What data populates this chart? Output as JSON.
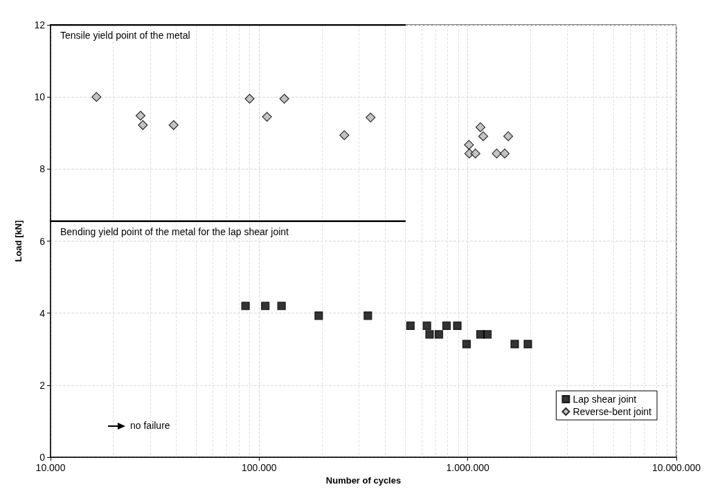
{
  "chart_data": {
    "type": "scatter",
    "xlabel": "Number of cycles",
    "ylabel": "Load [kN]",
    "log": "x",
    "grid": true,
    "legend": "bottom right",
    "xlim": [
      10000,
      10000000
    ],
    "xticks": [
      {
        "value": 10000,
        "label": "10.000"
      },
      {
        "value": 100000,
        "label": "100.000"
      },
      {
        "value": 1000000,
        "label": "1.000.000"
      },
      {
        "value": 10000000,
        "label": "10.000.000"
      }
    ],
    "ylim": [
      0,
      12
    ],
    "yticks": [
      0,
      2,
      4,
      6,
      8,
      10,
      12
    ],
    "series": [
      {
        "name": "Lap shear joint",
        "color": "#000000",
        "marker": "square",
        "x": [
          86000,
          107000,
          128000,
          193000,
          332000,
          531000,
          637000,
          656000,
          727000,
          791000,
          891000,
          987000,
          1150000,
          1242000,
          1679000,
          1941000
        ],
        "values": [
          4.2,
          4.2,
          4.2,
          3.93,
          3.93,
          3.65,
          3.65,
          3.41,
          3.41,
          3.65,
          3.65,
          3.14,
          3.41,
          3.41,
          3.14,
          3.14
        ]
      },
      {
        "name": "Reverse-bent joint",
        "color": "#b4b4b4",
        "marker": "diamond",
        "x": [
          16600,
          27000,
          27700,
          38900,
          90000,
          109000,
          132000,
          256000,
          342000,
          1150000,
          1186000,
          1563000,
          1013000,
          1017000,
          1088000,
          1376000,
          1503000
        ],
        "values": [
          10.0,
          9.48,
          9.22,
          9.22,
          9.95,
          9.45,
          9.95,
          8.94,
          9.43,
          9.16,
          8.91,
          8.91,
          8.67,
          8.43,
          8.43,
          8.43,
          8.43
        ]
      },
      {
        "type": "line",
        "color": "#000000",
        "marker": "none",
        "x": [
          10000,
          500000
        ],
        "values": [
          12,
          12
        ]
      },
      {
        "type": "line",
        "color": "#000000",
        "marker": "none",
        "x": [
          10000,
          500000
        ],
        "values": [
          6.55,
          6.55
        ]
      }
    ],
    "annotations": [
      {
        "text": "Tensile yield point of the metal",
        "x": 10000,
        "y": 12
      },
      {
        "text": "Bending yield point of the metal for the lap shear joint",
        "x": 10000,
        "y": 6.55
      },
      "no failure"
    ]
  }
}
